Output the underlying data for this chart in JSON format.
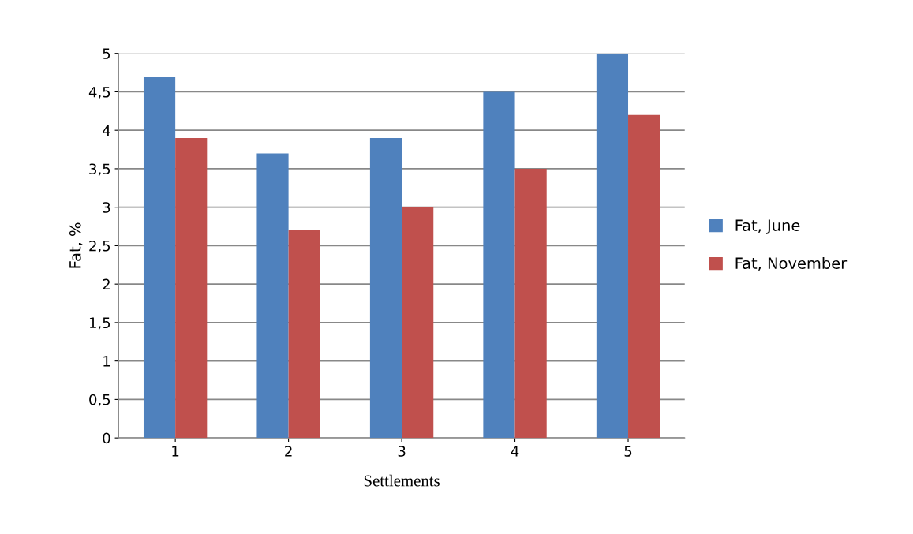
{
  "chart_data": {
    "type": "bar",
    "xlabel": "Settlements",
    "ylabel": "Fat, %",
    "categories": [
      "1",
      "2",
      "3",
      "4",
      "5"
    ],
    "series": [
      {
        "name": "Fat, June",
        "color": "#4f81bd",
        "values": [
          4.7,
          3.7,
          3.9,
          4.5,
          5.0
        ]
      },
      {
        "name": "Fat, November",
        "color": "#c0504d",
        "values": [
          3.9,
          2.7,
          3.0,
          3.5,
          4.2
        ]
      }
    ],
    "ylim": [
      0,
      5
    ],
    "yticks": [
      0,
      {
        "value": 0.5,
        "label": "0,5"
      },
      1,
      {
        "value": 1.5,
        "label": "1,5"
      },
      2,
      {
        "value": 2.5,
        "label": "2,5"
      },
      3,
      {
        "value": 3.5,
        "label": "3,5"
      },
      4,
      {
        "value": 4.5,
        "label": "4,5"
      },
      5
    ],
    "grid": "y",
    "legend": "right"
  }
}
